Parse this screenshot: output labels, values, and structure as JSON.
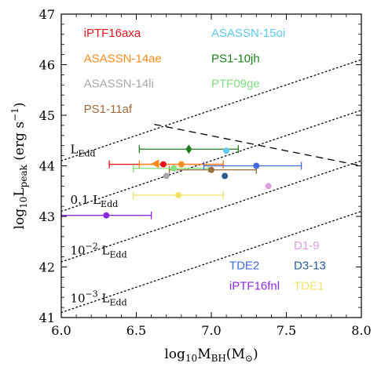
{
  "chart_data": {
    "type": "scatter",
    "xlabel_parts": {
      "pre": "log",
      "sub": "10",
      "main": "M",
      "sub2": "BH",
      "post": "(M",
      "sun": "⊙",
      "close": ")"
    },
    "ylabel_parts": {
      "pre": "log",
      "sub": "10",
      "main": "L",
      "sub2": "peak",
      "post": " (erg s",
      "sup": "−1",
      "close": ")"
    },
    "xlim": [
      6.0,
      8.0
    ],
    "ylim": [
      41,
      47
    ],
    "xticks": [
      6.0,
      6.5,
      7.0,
      7.5,
      8.0
    ],
    "xtick_labels": [
      "6.0",
      "6.5",
      "7.0",
      "7.5",
      "8.0"
    ],
    "yticks": [
      41,
      42,
      43,
      44,
      45,
      46,
      47
    ],
    "ytick_labels": [
      "41",
      "42",
      "43",
      "44",
      "45",
      "46",
      "47"
    ],
    "grid": false,
    "eddington_lines": [
      {
        "label_main": "L",
        "label_sub": "Edd",
        "label_pre": "",
        "label_sup": "",
        "offset": 0,
        "label_x": 6.06,
        "label_y": 44.25,
        "label_rot": 0
      },
      {
        "label_main": "L",
        "label_sub": "Edd",
        "label_pre": "0.1 ",
        "label_sup": "",
        "offset": -1,
        "label_x": 6.06,
        "label_y": 43.25,
        "label_rot": 0
      },
      {
        "label_main": "L",
        "label_sub": "Edd",
        "label_pre": "10",
        "label_sup": "−2",
        "offset": -2,
        "label_x": 6.06,
        "label_y": 42.25,
        "label_rot": 0
      },
      {
        "label_main": "L",
        "label_sub": "Edd",
        "label_pre": "10",
        "label_sup": "−3",
        "offset": -3,
        "label_x": 6.06,
        "label_y": 41.3,
        "label_rot": 0
      }
    ],
    "eddington_line_slope": 1,
    "eddington_line_intercept_at_6": 44.1,
    "dashed_line": {
      "x": [
        6.62,
        8.0
      ],
      "y": [
        44.82,
        44.0
      ]
    },
    "series": [
      {
        "name": "iPTF16axa",
        "color": "#e8141c",
        "marker": "circle",
        "x": 6.68,
        "y": 44.03,
        "xerr": [
          6.32,
          7.08
        ]
      },
      {
        "name": "ASASSN-14ae",
        "color": "#ff8c1a",
        "marker": "circle",
        "x": 6.8,
        "y": 44.03,
        "xerr": [
          6.52,
          7.08
        ]
      },
      {
        "name": "ASASSN-14li",
        "color": "#a8a8a8",
        "marker": "circle",
        "x": 6.7,
        "y": 43.8,
        "xerr": null
      },
      {
        "name": "PS1-11af",
        "color": "#9c6b3e",
        "marker": "circle",
        "x": 7.0,
        "y": 43.92,
        "xerr": [
          6.72,
          7.3
        ]
      },
      {
        "name": "ASASSN-15oi",
        "color": "#5ec8f0",
        "marker": "circle",
        "x": 7.1,
        "y": 44.3,
        "xerr": null
      },
      {
        "name": "PS1-10jh",
        "color": "#1c7f1c",
        "marker": "diamond",
        "x": 6.85,
        "y": 44.33,
        "xerr": [
          6.52,
          7.18
        ]
      },
      {
        "name": "PTF09ge",
        "color": "#7ee07e",
        "marker": "circle",
        "x": 6.75,
        "y": 43.95,
        "xerr": [
          6.48,
          6.98
        ]
      },
      {
        "name": "iPTF16fnl",
        "color": "#8a2be2",
        "marker": "circle",
        "x": 6.3,
        "y": 43.02,
        "xerr": [
          6.0,
          6.6
        ]
      },
      {
        "name": "TDE2",
        "color": "#4169e1",
        "marker": "circle",
        "x": 7.3,
        "y": 44.0,
        "xerr": [
          6.95,
          7.6
        ]
      },
      {
        "name": "D3-13",
        "color": "#2b5c91",
        "marker": "circle",
        "x": 7.09,
        "y": 43.8,
        "xerr": null
      },
      {
        "name": "D1-9",
        "color": "#dda0dd",
        "marker": "circle",
        "x": 7.38,
        "y": 43.6,
        "xerr": null
      },
      {
        "name": "TDE1",
        "color": "#f0e36a",
        "marker": "circle",
        "x": 6.78,
        "y": 43.42,
        "xerr": [
          6.48,
          7.08
        ]
      },
      {
        "name": "left-triangle",
        "color": "#ff8c1a",
        "marker": "triangle-left",
        "x": 6.63,
        "y": 44.04,
        "xerr": null
      }
    ],
    "legend_top": [
      {
        "text": "iPTF16axa",
        "color": "#e8141c",
        "x": 6.15,
        "y": 46.55
      },
      {
        "text": "ASASSN-15oi",
        "color": "#5ec8f0",
        "x": 7.0,
        "y": 46.55
      },
      {
        "text": "ASASSN-14ae",
        "color": "#ff8c1a",
        "x": 6.15,
        "y": 46.05
      },
      {
        "text": "PS1-10jh",
        "color": "#1c7f1c",
        "x": 7.0,
        "y": 46.05
      },
      {
        "text": "ASASSN-14li",
        "color": "#a8a8a8",
        "x": 6.15,
        "y": 45.55
      },
      {
        "text": "PTF09ge",
        "color": "#7ee07e",
        "x": 7.0,
        "y": 45.55
      },
      {
        "text": "PS1-11af",
        "color": "#9c6b3e",
        "x": 6.15,
        "y": 45.05
      }
    ],
    "legend_bottom": [
      {
        "text": "D1-9",
        "color": "#dda0dd",
        "x": 7.55,
        "y": 42.35
      },
      {
        "text": "TDE2",
        "color": "#4169e1",
        "x": 7.12,
        "y": 41.95
      },
      {
        "text": "D3-13",
        "color": "#2b5c91",
        "x": 7.55,
        "y": 41.95
      },
      {
        "text": "iPTF16fnl",
        "color": "#8a2be2",
        "x": 7.12,
        "y": 41.55
      },
      {
        "text": "TDE1",
        "color": "#f0e36a",
        "x": 7.55,
        "y": 41.55
      }
    ]
  }
}
